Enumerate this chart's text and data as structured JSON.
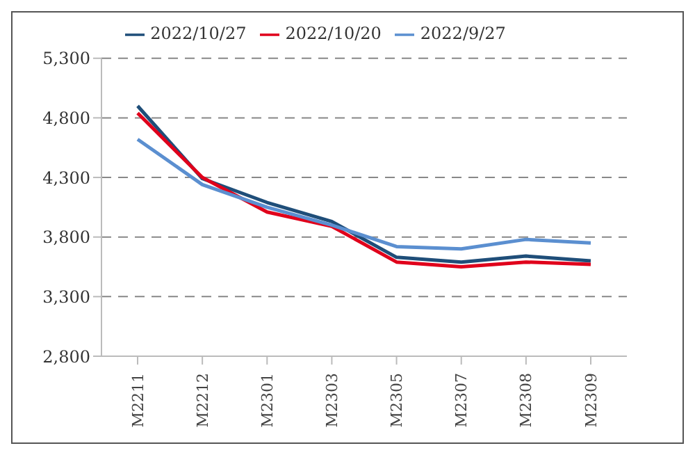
{
  "chart_data": {
    "type": "line",
    "categories": [
      "M2211",
      "M2212",
      "M2301",
      "M2303",
      "M2305",
      "M2307",
      "M2308",
      "M2309"
    ],
    "series": [
      {
        "name": "2022/10/27",
        "color": "#1f4e79",
        "values": [
          4900,
          4290,
          4090,
          3930,
          3630,
          3590,
          3640,
          3600
        ]
      },
      {
        "name": "2022/10/20",
        "color": "#e0001b",
        "values": [
          4840,
          4300,
          4010,
          3890,
          3590,
          3550,
          3590,
          3570
        ]
      },
      {
        "name": "2022/9/27",
        "color": "#5b8fd0",
        "values": [
          4620,
          4240,
          4050,
          3900,
          3720,
          3700,
          3780,
          3750
        ]
      }
    ],
    "ylim": [
      2800,
      5300
    ],
    "yticks": [
      {
        "value": 2800,
        "label": "2,800"
      },
      {
        "value": 3300,
        "label": "3,300"
      },
      {
        "value": 3800,
        "label": "3,800"
      },
      {
        "value": 4300,
        "label": "4,300"
      },
      {
        "value": 4800,
        "label": "4,800"
      },
      {
        "value": 5300,
        "label": "5,300"
      }
    ],
    "grid": "y",
    "legend": "top",
    "marker": "none",
    "line_style": "solid"
  }
}
